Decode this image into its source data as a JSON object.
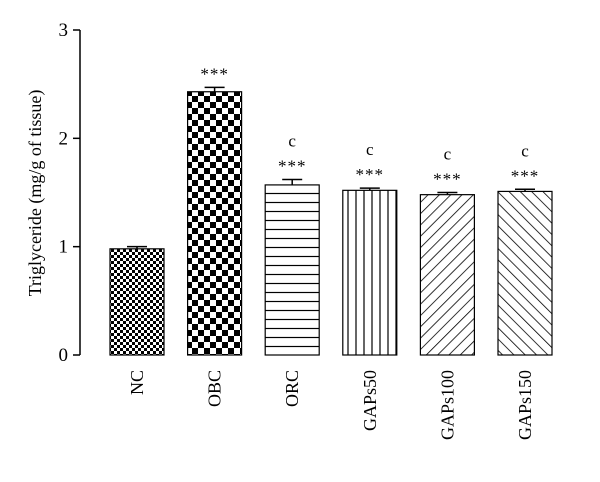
{
  "chart_data": {
    "type": "bar",
    "title": "",
    "xlabel": "",
    "ylabel": "Triglyceride (mg/g of tissue)",
    "ylim": [
      0,
      3
    ],
    "yticks": [
      0,
      1,
      2,
      3
    ],
    "categories": [
      "NC",
      "OBC",
      "ORC",
      "GAPs50",
      "GAPs100",
      "GAPs150"
    ],
    "values": [
      0.98,
      2.43,
      1.57,
      1.52,
      1.48,
      1.51
    ],
    "errors": [
      0.02,
      0.04,
      0.05,
      0.02,
      0.02,
      0.02
    ],
    "significance": [
      "",
      "***",
      "***",
      "***",
      "***",
      "***"
    ],
    "letters": [
      "",
      "",
      "c",
      "c",
      "c",
      "c"
    ],
    "patterns": [
      "small-checker",
      "large-checker",
      "horizontal-lines",
      "vertical-lines",
      "diagonal-forward",
      "diagonal-backward"
    ],
    "colors": {
      "ink": "#000000",
      "background": "#ffffff"
    },
    "grid": false,
    "legend": "none"
  }
}
